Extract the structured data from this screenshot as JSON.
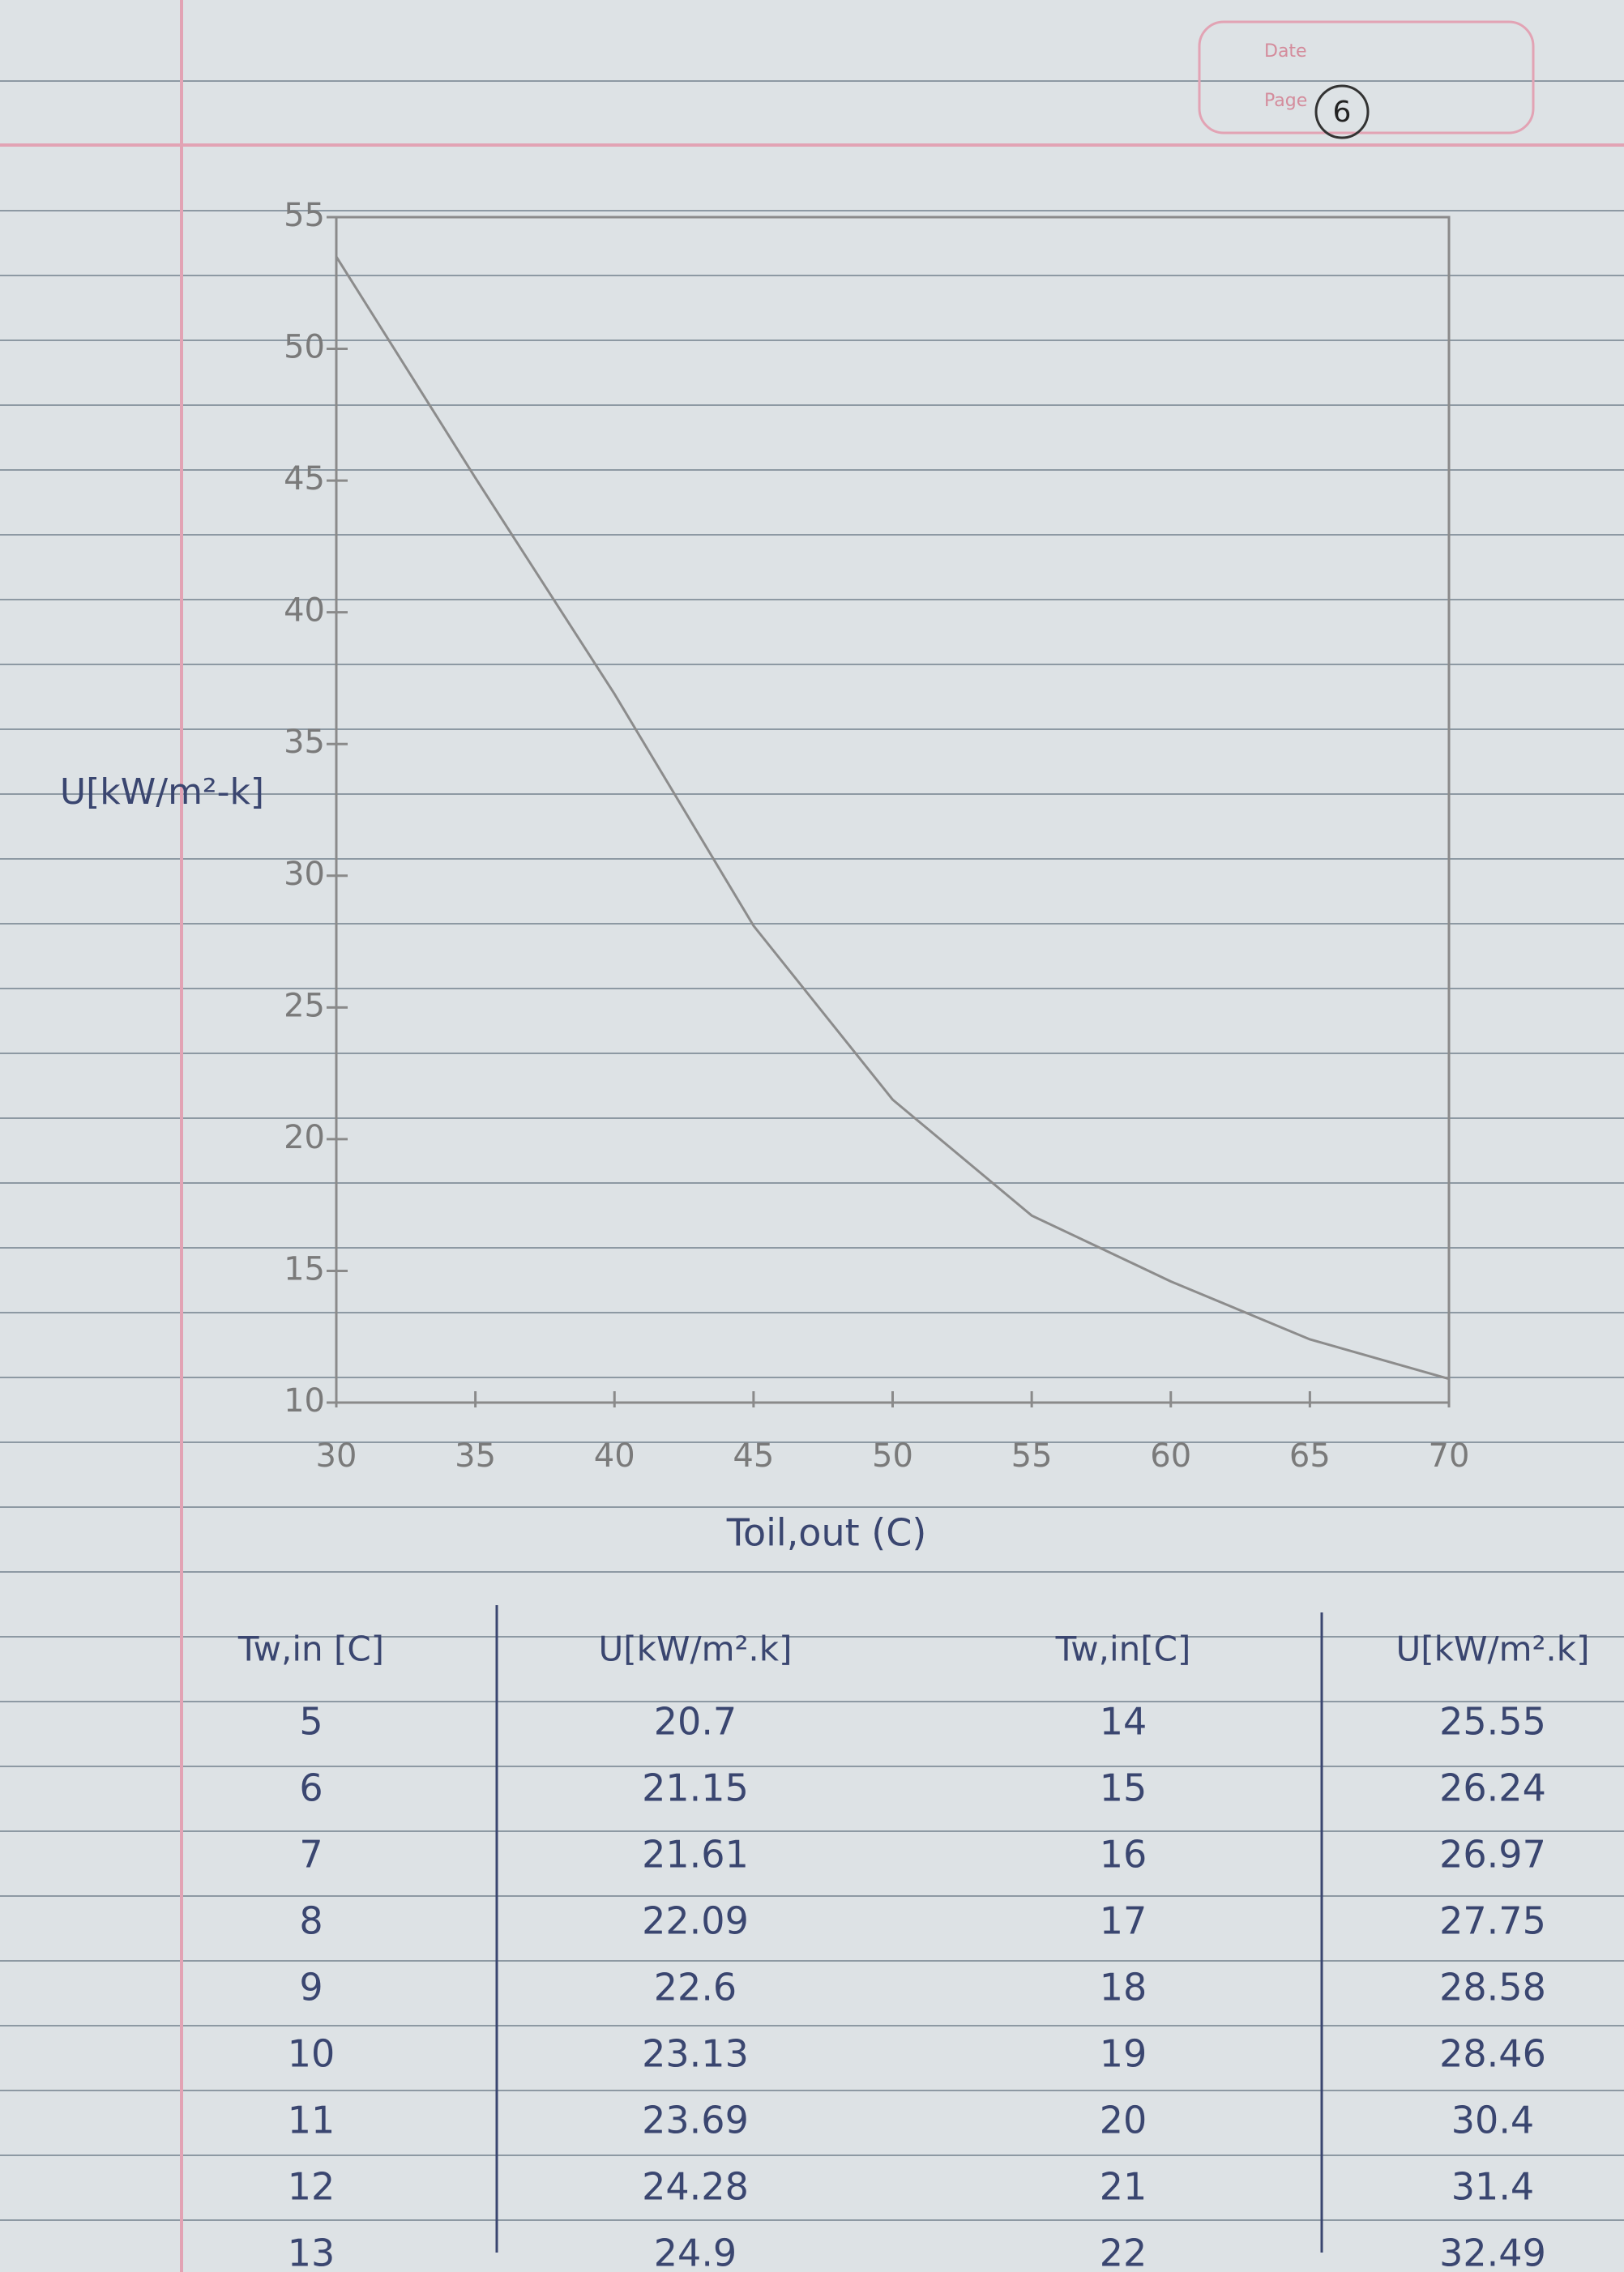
{
  "header": {
    "date_label": "Date",
    "page_label": "Page",
    "page_number": "6"
  },
  "chart_data": {
    "type": "line",
    "x": [
      30,
      35,
      40,
      45,
      50,
      55,
      60,
      65,
      70
    ],
    "values": [
      53.5,
      45.1,
      36.9,
      28.1,
      21.5,
      17.1,
      14.6,
      12.4,
      10.9
    ],
    "color": "#8c8c8c",
    "xlim": [
      30,
      70
    ],
    "xticks": [
      30,
      35,
      40,
      45,
      50,
      55,
      60,
      65,
      70
    ],
    "ylim": [
      10,
      55
    ],
    "yticks": [
      10,
      15,
      20,
      25,
      30,
      35,
      40,
      45,
      50,
      55
    ],
    "x_label": "Toil,out (C)",
    "y_label": "U[kW/m²-k]"
  },
  "table": {
    "header": [
      "Tw,in [C]",
      "U[kW/m².k]",
      "Tw,in[C]",
      "U[kW/m².k]"
    ],
    "rows": [
      [
        5,
        20.7,
        14,
        25.55
      ],
      [
        6,
        21.15,
        15,
        26.24
      ],
      [
        7,
        21.61,
        16,
        26.97
      ],
      [
        8,
        22.09,
        17,
        27.75
      ],
      [
        9,
        22.6,
        18,
        28.58
      ],
      [
        10,
        23.13,
        19,
        28.46
      ],
      [
        11,
        23.69,
        20,
        30.4
      ],
      [
        12,
        24.28,
        21,
        31.4
      ],
      [
        13,
        24.9,
        22,
        32.49
      ]
    ]
  }
}
